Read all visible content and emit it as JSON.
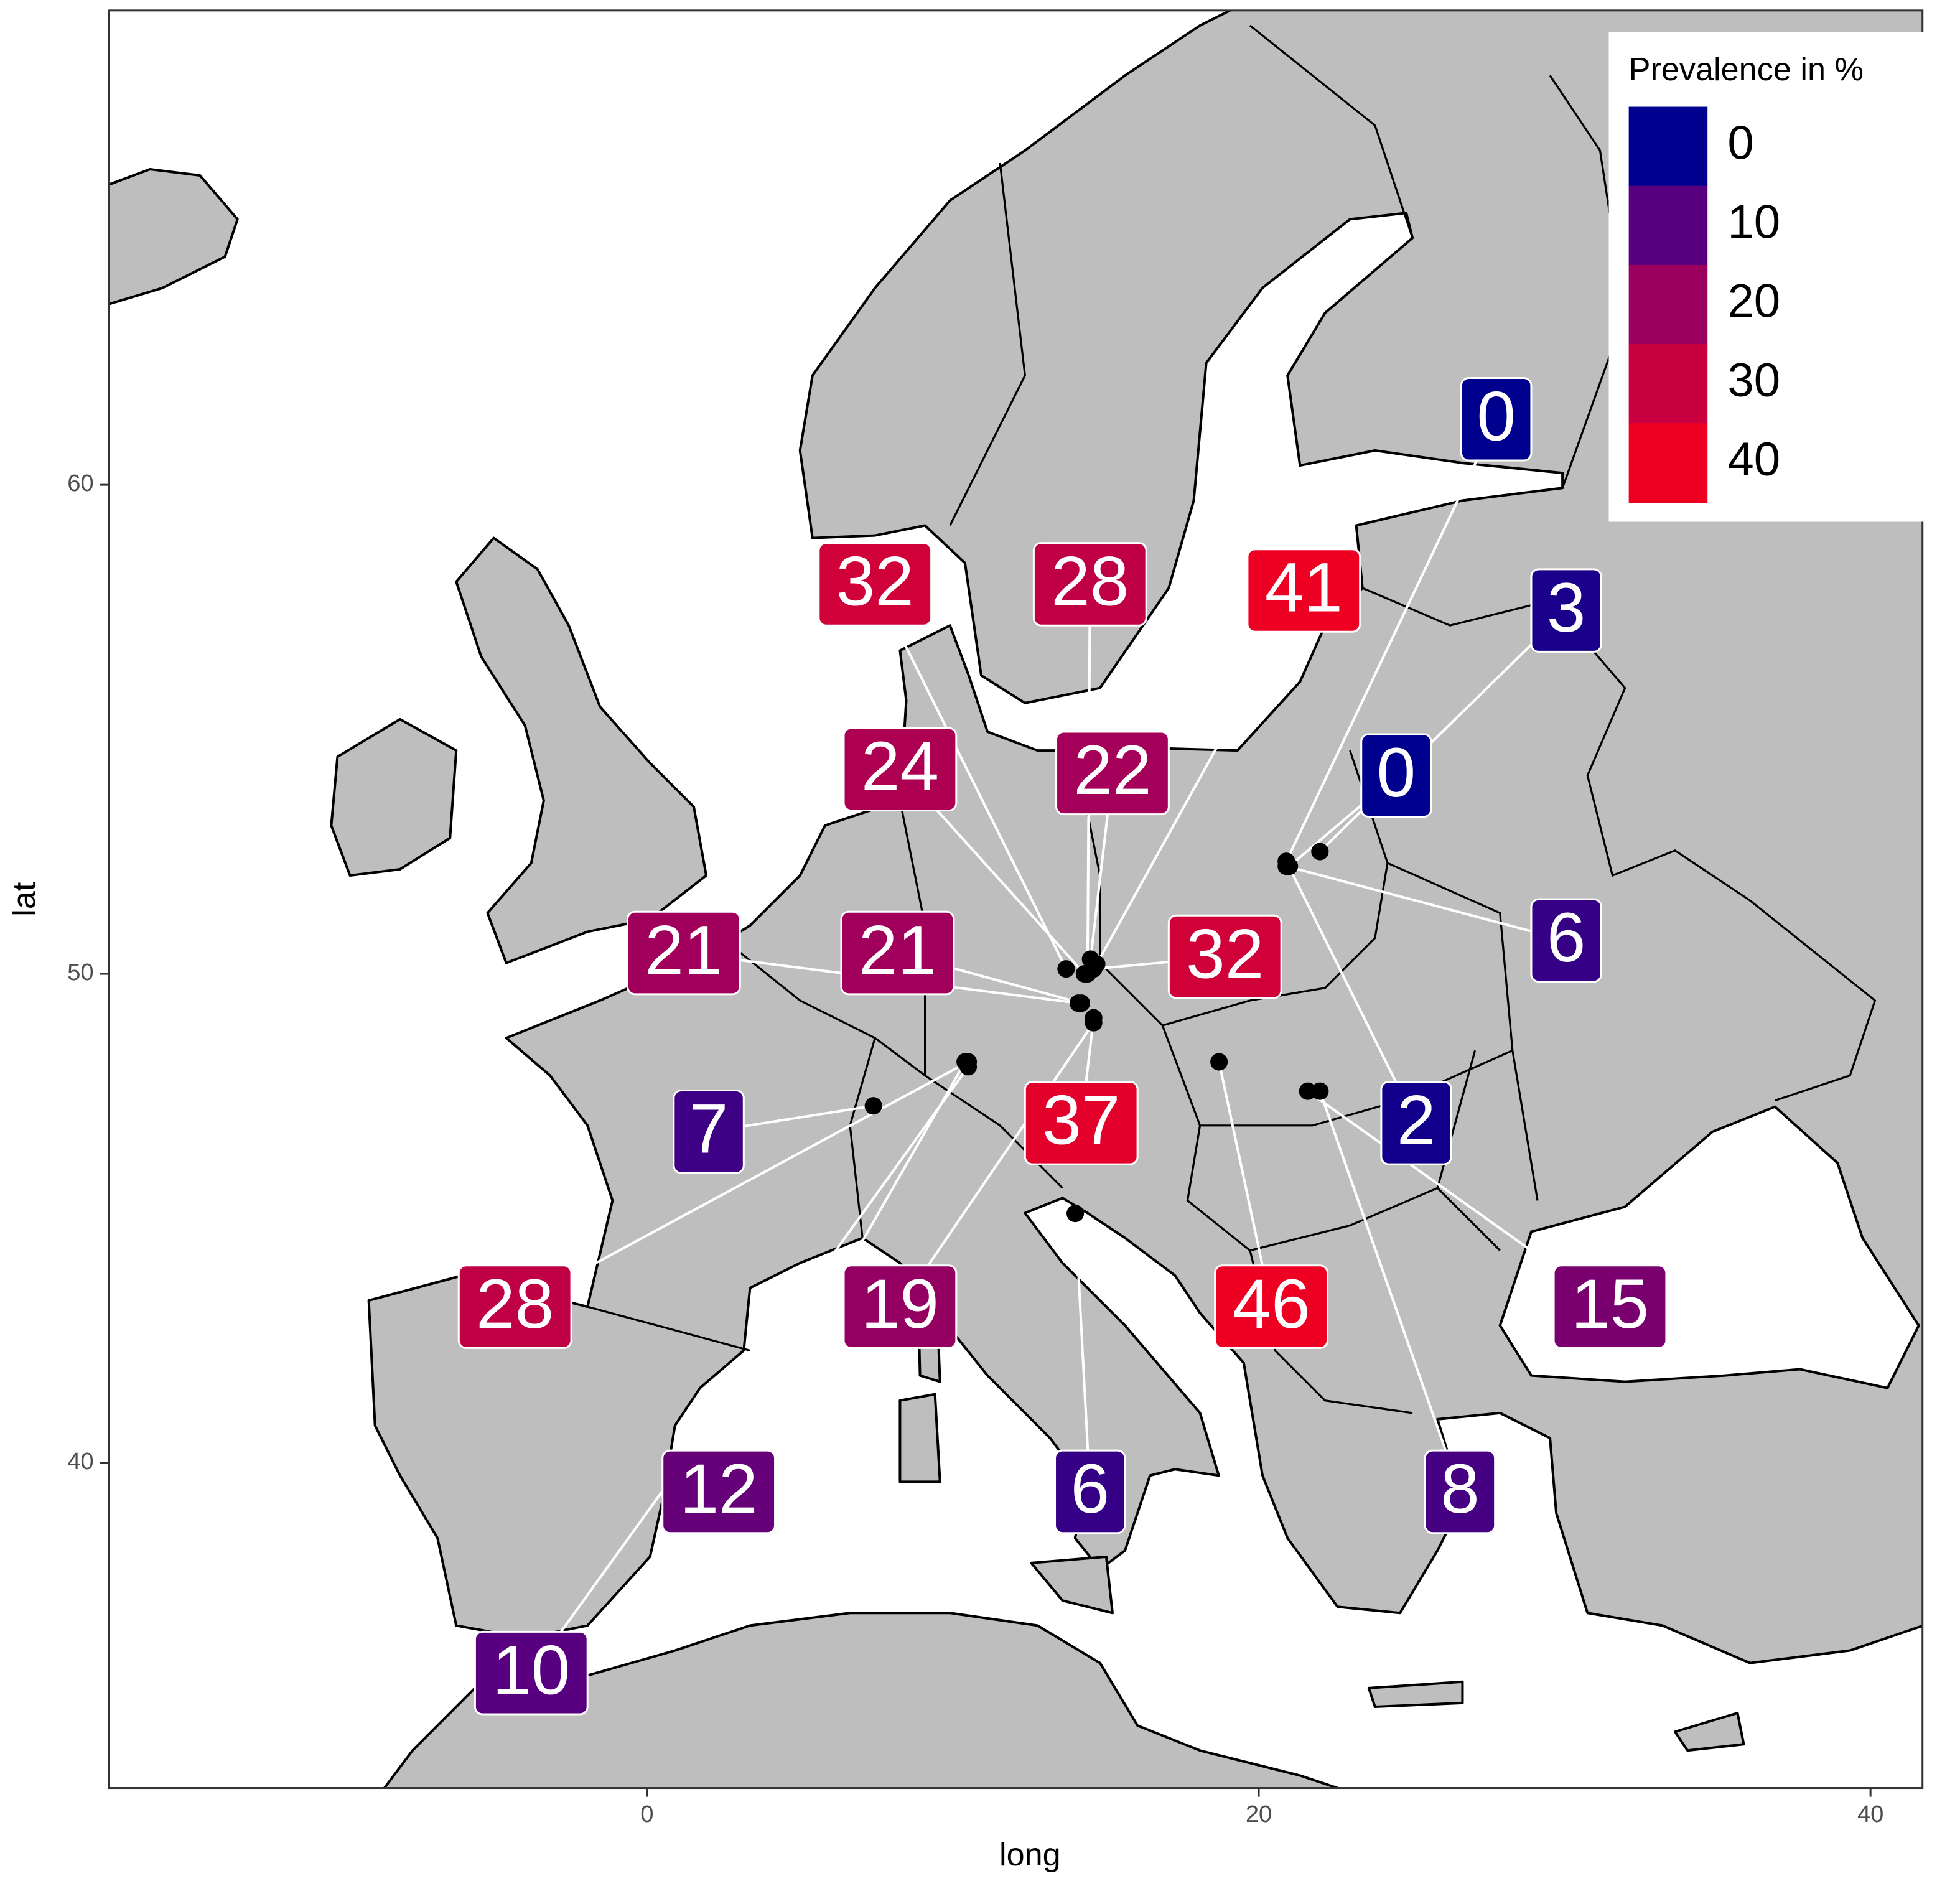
{
  "chart_data": {
    "type": "map",
    "x_label": "long",
    "y_label": "lat",
    "xlim": [
      -17.6,
      41.7
    ],
    "ylim": [
      33.35,
      69.7
    ],
    "xticks": [
      0,
      20,
      40
    ],
    "yticks": [
      40,
      50,
      60
    ],
    "legend": {
      "title": "Prevalence in %",
      "position": "top-right",
      "values": [
        0,
        10,
        20,
        30,
        40
      ],
      "colors": [
        "#00008f",
        "#58007f",
        "#9b005f",
        "#c9003f",
        "#ee0022"
      ]
    },
    "sites": [
      {
        "long": 20.9,
        "lat": 52.3,
        "value": 0
      },
      {
        "long": 22.0,
        "lat": 52.5,
        "value": 3
      },
      {
        "long": 21.0,
        "lat": 52.2,
        "value": 0
      },
      {
        "long": 20.9,
        "lat": 52.2,
        "value": 6
      },
      {
        "long": 20.9,
        "lat": 52.3,
        "value": 2
      },
      {
        "long": 13.7,
        "lat": 50.1,
        "value": 32
      },
      {
        "long": 14.4,
        "lat": 50.0,
        "value": 28
      },
      {
        "long": 14.7,
        "lat": 50.2,
        "value": 41
      },
      {
        "long": 14.3,
        "lat": 50.0,
        "value": 24
      },
      {
        "long": 14.5,
        "lat": 50.3,
        "value": 22
      },
      {
        "long": 14.1,
        "lat": 49.4,
        "value": 21
      },
      {
        "long": 14.2,
        "lat": 49.4,
        "value": 21
      },
      {
        "long": 14.6,
        "lat": 50.1,
        "value": 32
      },
      {
        "long": 14.6,
        "lat": 49.1,
        "value": 37
      },
      {
        "long": 7.4,
        "lat": 47.3,
        "value": 7
      },
      {
        "long": 10.5,
        "lat": 48.2,
        "value": 28
      },
      {
        "long": 14.6,
        "lat": 49.0,
        "value": 19
      },
      {
        "long": 10.4,
        "lat": 48.2,
        "value": 12
      },
      {
        "long": 10.5,
        "lat": 48.1,
        "value": 10
      },
      {
        "long": 18.7,
        "lat": 48.2,
        "value": 46
      },
      {
        "long": 14.0,
        "lat": 45.1,
        "value": 6
      },
      {
        "long": 21.6,
        "lat": 47.6,
        "value": 15
      },
      {
        "long": 22.0,
        "lat": 47.6,
        "value": 8
      }
    ]
  }
}
